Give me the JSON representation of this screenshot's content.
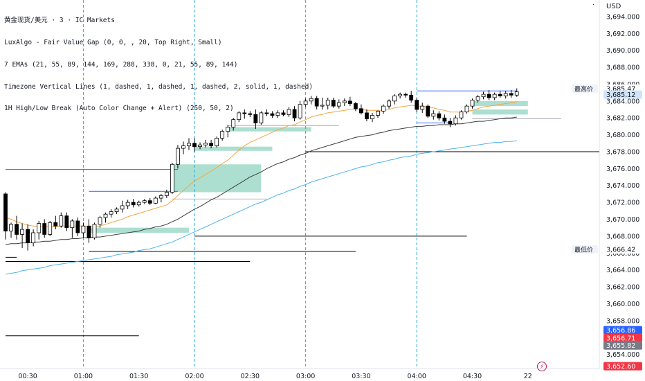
{
  "legend": {
    "line1": "黄金现货/美元 · 3 · IC Markets",
    "line2": "LuxAlgo - Fair Value Gap (0, 0, , 20, Top Right, Small)",
    "line3": "7 EMAs (21, 55, 89, 144, 169, 288, 338, 0, 21, 55, 89, 144)",
    "line4": "Timezone Vertical Lines (1, dashed, 1, dashed, 1, dashed, 2, solid, 1, dashed)",
    "line5": "1H High/Low Break (Auto Color Change + Alert) (250, 50, 2)"
  },
  "toolbar": {
    "menu": "·",
    "currency": "USD"
  },
  "alert_icon": "⚡",
  "colors": {
    "up": "#ffffff",
    "down": "#000000",
    "wick": "#000000",
    "up_border": "#000000",
    "ema21": "#f5a445",
    "ema55": "#3d3d3d",
    "ema89": "#4fb3e8",
    "fvg": "#9fd9c8",
    "break_blue": "#2962ff",
    "break_black": "#000000",
    "vline": "#29a6d8",
    "grid": "#ffffff",
    "tag_blue": "#2962ff",
    "tag_red": "#f23645",
    "tag_gray": "#787b86"
  },
  "chart_data": {
    "type": "candlestick",
    "title": "",
    "ylabel": "",
    "ylim": [
      3651.5,
      3695.8
    ],
    "y_ticks": [
      3694,
      3692,
      3690,
      3688,
      3686,
      3684,
      3682,
      3680,
      3678,
      3676,
      3674,
      3672,
      3670,
      3668,
      3666,
      3664,
      3662,
      3660,
      3658,
      3656,
      3654
    ],
    "x_ticks": [
      {
        "label": "00:30",
        "bar": 4
      },
      {
        "label": "01:00",
        "bar": 14
      },
      {
        "label": "01:30",
        "bar": 24
      },
      {
        "label": "02:00",
        "bar": 34
      },
      {
        "label": "02:30",
        "bar": 44
      },
      {
        "label": "03:00",
        "bar": 54
      },
      {
        "label": "03:30",
        "bar": 64
      },
      {
        "label": "04:00",
        "bar": 74
      },
      {
        "label": "04:30",
        "bar": 84
      },
      {
        "label": "22",
        "bar": 94
      }
    ],
    "vlines_bars": [
      14,
      34,
      54,
      74
    ],
    "bars_total": 108,
    "candles": [
      {
        "o": 3673.0,
        "h": 3673.2,
        "l": 3667.6,
        "c": 3668.6
      },
      {
        "o": 3668.6,
        "h": 3669.6,
        "l": 3667.8,
        "c": 3669.4
      },
      {
        "o": 3669.4,
        "h": 3670.4,
        "l": 3667.6,
        "c": 3668.2
      },
      {
        "o": 3668.2,
        "h": 3669.5,
        "l": 3666.6,
        "c": 3668.8
      },
      {
        "o": 3668.8,
        "h": 3669.4,
        "l": 3666.3,
        "c": 3667.2
      },
      {
        "o": 3667.2,
        "h": 3668.8,
        "l": 3666.8,
        "c": 3668.4
      },
      {
        "o": 3668.4,
        "h": 3669.8,
        "l": 3667.6,
        "c": 3669.5
      },
      {
        "o": 3669.5,
        "h": 3670.0,
        "l": 3667.8,
        "c": 3668.2
      },
      {
        "o": 3668.2,
        "h": 3669.8,
        "l": 3668.0,
        "c": 3669.6
      },
      {
        "o": 3669.6,
        "h": 3670.4,
        "l": 3668.8,
        "c": 3669.2
      },
      {
        "o": 3669.2,
        "h": 3670.8,
        "l": 3669.0,
        "c": 3670.4
      },
      {
        "o": 3670.4,
        "h": 3670.8,
        "l": 3668.6,
        "c": 3669.0
      },
      {
        "o": 3669.0,
        "h": 3670.0,
        "l": 3667.8,
        "c": 3669.8
      },
      {
        "o": 3669.8,
        "h": 3670.2,
        "l": 3668.0,
        "c": 3668.4
      },
      {
        "o": 3668.4,
        "h": 3669.6,
        "l": 3667.8,
        "c": 3669.2
      },
      {
        "o": 3669.2,
        "h": 3670.0,
        "l": 3667.2,
        "c": 3667.8
      },
      {
        "o": 3667.8,
        "h": 3669.6,
        "l": 3667.6,
        "c": 3669.4
      },
      {
        "o": 3669.4,
        "h": 3670.4,
        "l": 3669.0,
        "c": 3670.2
      },
      {
        "o": 3670.2,
        "h": 3670.8,
        "l": 3669.6,
        "c": 3670.6
      },
      {
        "o": 3670.6,
        "h": 3671.2,
        "l": 3670.2,
        "c": 3670.9
      },
      {
        "o": 3670.9,
        "h": 3671.4,
        "l": 3670.6,
        "c": 3671.2
      },
      {
        "o": 3671.2,
        "h": 3672.2,
        "l": 3670.8,
        "c": 3671.6
      },
      {
        "o": 3671.6,
        "h": 3672.3,
        "l": 3671.2,
        "c": 3672.0
      },
      {
        "o": 3672.0,
        "h": 3672.4,
        "l": 3671.4,
        "c": 3671.7
      },
      {
        "o": 3671.7,
        "h": 3672.2,
        "l": 3671.5,
        "c": 3672.0
      },
      {
        "o": 3672.0,
        "h": 3672.4,
        "l": 3671.8,
        "c": 3672.2
      },
      {
        "o": 3672.2,
        "h": 3672.5,
        "l": 3671.7,
        "c": 3671.9
      },
      {
        "o": 3671.9,
        "h": 3672.7,
        "l": 3671.8,
        "c": 3672.5
      },
      {
        "o": 3672.5,
        "h": 3673.0,
        "l": 3672.0,
        "c": 3672.8
      },
      {
        "o": 3672.8,
        "h": 3673.5,
        "l": 3672.5,
        "c": 3673.2
      },
      {
        "o": 3673.2,
        "h": 3676.7,
        "l": 3673.0,
        "c": 3676.5
      },
      {
        "o": 3676.5,
        "h": 3678.8,
        "l": 3676.0,
        "c": 3678.4
      },
      {
        "o": 3678.4,
        "h": 3679.2,
        "l": 3677.7,
        "c": 3678.7
      },
      {
        "o": 3678.7,
        "h": 3679.6,
        "l": 3678.2,
        "c": 3679.0
      },
      {
        "o": 3679.0,
        "h": 3679.6,
        "l": 3678.0,
        "c": 3678.6
      },
      {
        "o": 3678.6,
        "h": 3679.1,
        "l": 3678.3,
        "c": 3678.8
      },
      {
        "o": 3678.8,
        "h": 3679.4,
        "l": 3678.5,
        "c": 3679.0
      },
      {
        "o": 3679.0,
        "h": 3679.4,
        "l": 3678.4,
        "c": 3678.7
      },
      {
        "o": 3678.7,
        "h": 3679.8,
        "l": 3678.5,
        "c": 3679.6
      },
      {
        "o": 3679.6,
        "h": 3680.6,
        "l": 3679.3,
        "c": 3680.4
      },
      {
        "o": 3680.4,
        "h": 3681.2,
        "l": 3679.7,
        "c": 3680.9
      },
      {
        "o": 3680.9,
        "h": 3682.0,
        "l": 3680.5,
        "c": 3681.8
      },
      {
        "o": 3681.8,
        "h": 3682.8,
        "l": 3681.5,
        "c": 3682.6
      },
      {
        "o": 3682.6,
        "h": 3683.0,
        "l": 3681.9,
        "c": 3682.5
      },
      {
        "o": 3682.5,
        "h": 3682.8,
        "l": 3682.1,
        "c": 3682.4
      },
      {
        "o": 3682.4,
        "h": 3683.0,
        "l": 3680.7,
        "c": 3681.4
      },
      {
        "o": 3681.4,
        "h": 3682.8,
        "l": 3681.2,
        "c": 3682.6
      },
      {
        "o": 3682.6,
        "h": 3683.0,
        "l": 3682.2,
        "c": 3682.5
      },
      {
        "o": 3682.5,
        "h": 3682.8,
        "l": 3682.0,
        "c": 3682.3
      },
      {
        "o": 3682.3,
        "h": 3682.9,
        "l": 3682.0,
        "c": 3682.6
      },
      {
        "o": 3682.6,
        "h": 3682.9,
        "l": 3682.2,
        "c": 3682.4
      },
      {
        "o": 3682.4,
        "h": 3683.3,
        "l": 3682.1,
        "c": 3683.0
      },
      {
        "o": 3683.0,
        "h": 3683.4,
        "l": 3681.6,
        "c": 3682.0
      },
      {
        "o": 3682.0,
        "h": 3684.0,
        "l": 3681.8,
        "c": 3683.6
      },
      {
        "o": 3683.6,
        "h": 3684.3,
        "l": 3683.3,
        "c": 3684.0
      },
      {
        "o": 3684.0,
        "h": 3684.6,
        "l": 3683.6,
        "c": 3684.3
      },
      {
        "o": 3684.3,
        "h": 3684.6,
        "l": 3683.0,
        "c": 3683.4
      },
      {
        "o": 3683.4,
        "h": 3684.4,
        "l": 3683.0,
        "c": 3683.5
      },
      {
        "o": 3683.5,
        "h": 3684.4,
        "l": 3683.0,
        "c": 3684.1
      },
      {
        "o": 3684.1,
        "h": 3684.4,
        "l": 3683.2,
        "c": 3683.4
      },
      {
        "o": 3683.4,
        "h": 3684.2,
        "l": 3683.1,
        "c": 3683.8
      },
      {
        "o": 3683.8,
        "h": 3684.3,
        "l": 3683.4,
        "c": 3684.0
      },
      {
        "o": 3684.0,
        "h": 3684.5,
        "l": 3683.4,
        "c": 3683.7
      },
      {
        "o": 3683.7,
        "h": 3683.9,
        "l": 3682.8,
        "c": 3683.1
      },
      {
        "o": 3683.1,
        "h": 3683.6,
        "l": 3682.4,
        "c": 3682.6
      },
      {
        "o": 3682.6,
        "h": 3683.0,
        "l": 3681.6,
        "c": 3681.9
      },
      {
        "o": 3681.9,
        "h": 3682.6,
        "l": 3681.5,
        "c": 3682.3
      },
      {
        "o": 3682.3,
        "h": 3682.9,
        "l": 3682.0,
        "c": 3682.8
      },
      {
        "o": 3682.8,
        "h": 3683.6,
        "l": 3682.5,
        "c": 3683.4
      },
      {
        "o": 3683.4,
        "h": 3684.2,
        "l": 3683.1,
        "c": 3684.0
      },
      {
        "o": 3684.0,
        "h": 3684.8,
        "l": 3683.6,
        "c": 3684.6
      },
      {
        "o": 3684.6,
        "h": 3685.0,
        "l": 3684.3,
        "c": 3684.8
      },
      {
        "o": 3684.8,
        "h": 3685.0,
        "l": 3684.4,
        "c": 3684.7
      },
      {
        "o": 3684.7,
        "h": 3685.2,
        "l": 3683.8,
        "c": 3684.1
      },
      {
        "o": 3684.1,
        "h": 3684.3,
        "l": 3682.7,
        "c": 3683.0
      },
      {
        "o": 3683.0,
        "h": 3683.8,
        "l": 3682.6,
        "c": 3683.4
      },
      {
        "o": 3683.4,
        "h": 3683.6,
        "l": 3682.0,
        "c": 3682.2
      },
      {
        "o": 3682.2,
        "h": 3682.9,
        "l": 3681.8,
        "c": 3682.5
      },
      {
        "o": 3682.5,
        "h": 3682.8,
        "l": 3681.7,
        "c": 3682.0
      },
      {
        "o": 3682.0,
        "h": 3682.4,
        "l": 3681.3,
        "c": 3681.6
      },
      {
        "o": 3681.6,
        "h": 3682.0,
        "l": 3680.9,
        "c": 3681.3
      },
      {
        "o": 3681.3,
        "h": 3682.3,
        "l": 3681.1,
        "c": 3682.0
      },
      {
        "o": 3682.0,
        "h": 3682.9,
        "l": 3681.8,
        "c": 3682.7
      },
      {
        "o": 3682.7,
        "h": 3683.6,
        "l": 3682.5,
        "c": 3683.4
      },
      {
        "o": 3683.4,
        "h": 3684.3,
        "l": 3683.1,
        "c": 3684.1
      },
      {
        "o": 3684.1,
        "h": 3684.7,
        "l": 3683.8,
        "c": 3684.5
      },
      {
        "o": 3684.5,
        "h": 3685.1,
        "l": 3684.2,
        "c": 3684.8
      },
      {
        "o": 3684.8,
        "h": 3685.3,
        "l": 3684.1,
        "c": 3684.4
      },
      {
        "o": 3684.4,
        "h": 3685.0,
        "l": 3684.1,
        "c": 3684.8
      },
      {
        "o": 3684.8,
        "h": 3685.2,
        "l": 3684.4,
        "c": 3684.6
      },
      {
        "o": 3684.6,
        "h": 3685.2,
        "l": 3684.3,
        "c": 3684.9
      },
      {
        "o": 3684.9,
        "h": 3685.3,
        "l": 3684.4,
        "c": 3684.7
      },
      {
        "o": 3684.7,
        "h": 3685.5,
        "l": 3684.5,
        "c": 3685.1
      }
    ],
    "ema21": [
      3670.2,
      3670.0,
      3669.7,
      3669.5,
      3669.3,
      3669.2,
      3669.1,
      3669.1,
      3669.1,
      3669.1,
      3669.2,
      3669.2,
      3669.2,
      3669.2,
      3669.2,
      3669.1,
      3669.1,
      3669.2,
      3669.4,
      3669.6,
      3669.8,
      3670.0,
      3670.3,
      3670.5,
      3670.7,
      3670.9,
      3671.1,
      3671.3,
      3671.5,
      3671.7,
      3672.2,
      3672.8,
      3673.4,
      3674.0,
      3674.5,
      3674.9,
      3675.3,
      3675.7,
      3676.1,
      3676.6,
      3677.0,
      3677.6,
      3678.2,
      3678.7,
      3679.1,
      3679.4,
      3679.7,
      3680.0,
      3680.3,
      3680.6,
      3680.8,
      3681.1,
      3681.2,
      3681.5,
      3681.8,
      3682.1,
      3682.3,
      3682.4,
      3682.6,
      3682.7,
      3682.8,
      3682.9,
      3683.0,
      3683.0,
      3683.0,
      3682.9,
      3682.9,
      3682.9,
      3682.9,
      3683.0,
      3683.2,
      3683.3,
      3683.4,
      3683.5,
      3683.4,
      3683.4,
      3683.3,
      3683.2,
      3683.0,
      3682.9,
      3682.7,
      3682.7,
      3682.7,
      3682.8,
      3682.9,
      3683.1,
      3683.3,
      3683.4,
      3683.5,
      3683.6,
      3683.7,
      3683.8,
      3683.9
    ],
    "ema55": [
      3667.0,
      3667.1,
      3667.1,
      3667.2,
      3667.2,
      3667.3,
      3667.3,
      3667.4,
      3667.4,
      3667.5,
      3667.6,
      3667.6,
      3667.7,
      3667.7,
      3667.8,
      3667.8,
      3667.9,
      3667.9,
      3668.0,
      3668.1,
      3668.2,
      3668.3,
      3668.4,
      3668.5,
      3668.6,
      3668.8,
      3668.9,
      3669.1,
      3669.2,
      3669.4,
      3669.7,
      3670.0,
      3670.4,
      3670.8,
      3671.2,
      3671.5,
      3671.9,
      3672.3,
      3672.6,
      3673.0,
      3673.4,
      3673.8,
      3674.2,
      3674.6,
      3675.0,
      3675.3,
      3675.6,
      3676.0,
      3676.3,
      3676.6,
      3676.8,
      3677.1,
      3677.3,
      3677.6,
      3677.8,
      3678.1,
      3678.3,
      3678.5,
      3678.7,
      3678.9,
      3679.1,
      3679.3,
      3679.5,
      3679.7,
      3679.8,
      3679.9,
      3680.0,
      3680.2,
      3680.3,
      3680.5,
      3680.6,
      3680.7,
      3680.8,
      3680.9,
      3681.0,
      3681.0,
      3681.1,
      3681.1,
      3681.2,
      3681.2,
      3681.2,
      3681.3,
      3681.3,
      3681.4,
      3681.5,
      3681.6,
      3681.6,
      3681.7,
      3681.8,
      3681.9,
      3682.0,
      3682.0,
      3682.1
    ],
    "ema89": [
      3663.5,
      3663.6,
      3663.7,
      3663.9,
      3664.0,
      3664.1,
      3664.2,
      3664.3,
      3664.5,
      3664.6,
      3664.7,
      3664.8,
      3664.9,
      3665.0,
      3665.1,
      3665.2,
      3665.3,
      3665.4,
      3665.5,
      3665.6,
      3665.8,
      3665.9,
      3666.0,
      3666.1,
      3666.3,
      3666.4,
      3666.5,
      3666.7,
      3666.9,
      3667.1,
      3667.3,
      3667.6,
      3667.9,
      3668.2,
      3668.5,
      3668.8,
      3669.1,
      3669.4,
      3669.7,
      3670.0,
      3670.3,
      3670.6,
      3670.9,
      3671.2,
      3671.5,
      3671.8,
      3672.0,
      3672.3,
      3672.6,
      3672.9,
      3673.1,
      3673.4,
      3673.6,
      3673.9,
      3674.1,
      3674.4,
      3674.6,
      3674.8,
      3675.0,
      3675.2,
      3675.4,
      3675.6,
      3675.8,
      3676.0,
      3676.2,
      3676.3,
      3676.5,
      3676.7,
      3676.8,
      3677.0,
      3677.1,
      3677.3,
      3677.4,
      3677.5,
      3677.7,
      3677.8,
      3677.9,
      3678.0,
      3678.1,
      3678.2,
      3678.3,
      3678.4,
      3678.5,
      3678.6,
      3678.7,
      3678.8,
      3678.9,
      3679.0,
      3679.1,
      3679.1,
      3679.2,
      3679.2,
      3679.3
    ],
    "fvg_zones": [
      {
        "bar_start": 15,
        "bar_end": 33,
        "top": 3669.0,
        "bottom": 3668.4
      },
      {
        "bar_start": 30,
        "bar_end": 46,
        "top": 3676.5,
        "bottom": 3673.2
      },
      {
        "bar_start": 34,
        "bar_end": 48,
        "top": 3678.6,
        "bottom": 3678.1
      },
      {
        "bar_start": 40,
        "bar_end": 55,
        "top": 3680.9,
        "bottom": 3680.4
      },
      {
        "bar_start": 84,
        "bar_end": 94,
        "top": 3684.0,
        "bottom": 3683.4
      },
      {
        "bar_start": 84,
        "bar_end": 94,
        "top": 3683.0,
        "bottom": 3682.4
      }
    ],
    "level_lines": [
      {
        "price": 3675.9,
        "bar_start": 0,
        "bar_end": 31,
        "color": "blue"
      },
      {
        "price": 3673.3,
        "bar_start": 15,
        "bar_end": 31,
        "color": "blue"
      },
      {
        "price": 3685.2,
        "bar_start": 74,
        "bar_end": 92,
        "color": "blue"
      },
      {
        "price": 3681.4,
        "bar_start": 74,
        "bar_end": 80,
        "color": "blue"
      },
      {
        "price": 3672.4,
        "bar_start": 30,
        "bar_end": 47,
        "color": "gray"
      },
      {
        "price": 3681.1,
        "bar_start": 40,
        "bar_end": 60,
        "color": "gray"
      },
      {
        "price": 3681.9,
        "bar_start": 84,
        "bar_end": 100,
        "color": "gray"
      },
      {
        "price": 3678.0,
        "bar_start": 54,
        "bar_end": 108,
        "color": "black"
      },
      {
        "price": 3668.0,
        "bar_start": 34,
        "bar_end": 83,
        "color": "black"
      },
      {
        "price": 3666.2,
        "bar_start": 15,
        "bar_end": 63,
        "color": "black"
      },
      {
        "price": 3665.0,
        "bar_start": 0,
        "bar_end": 44,
        "color": "black"
      },
      {
        "price": 3665.5,
        "bar_start": 0,
        "bar_end": 2,
        "color": "black"
      },
      {
        "price": 3656.2,
        "bar_start": 0,
        "bar_end": 24,
        "color": "black"
      }
    ],
    "price_labels": [
      {
        "text": "最高价",
        "price": 3685.47,
        "kind": "name"
      },
      {
        "text": "3,685.47",
        "price": 3685.47,
        "kind": "plain"
      },
      {
        "text": "3,685.12",
        "price": 3684.77,
        "kind": "current"
      },
      {
        "text": "最低价",
        "price": 3666.42,
        "kind": "name"
      },
      {
        "text": "3,666.42",
        "price": 3666.42,
        "kind": "plain"
      },
      {
        "text": "3,656.86",
        "price": 3656.86,
        "kind": "blue"
      },
      {
        "text": "3,656.71",
        "price": 3655.95,
        "kind": "red"
      },
      {
        "text": "3,655.82",
        "price": 3655.05,
        "kind": "gray"
      },
      {
        "text": "3,652.60",
        "price": 3652.6,
        "kind": "red"
      }
    ]
  }
}
